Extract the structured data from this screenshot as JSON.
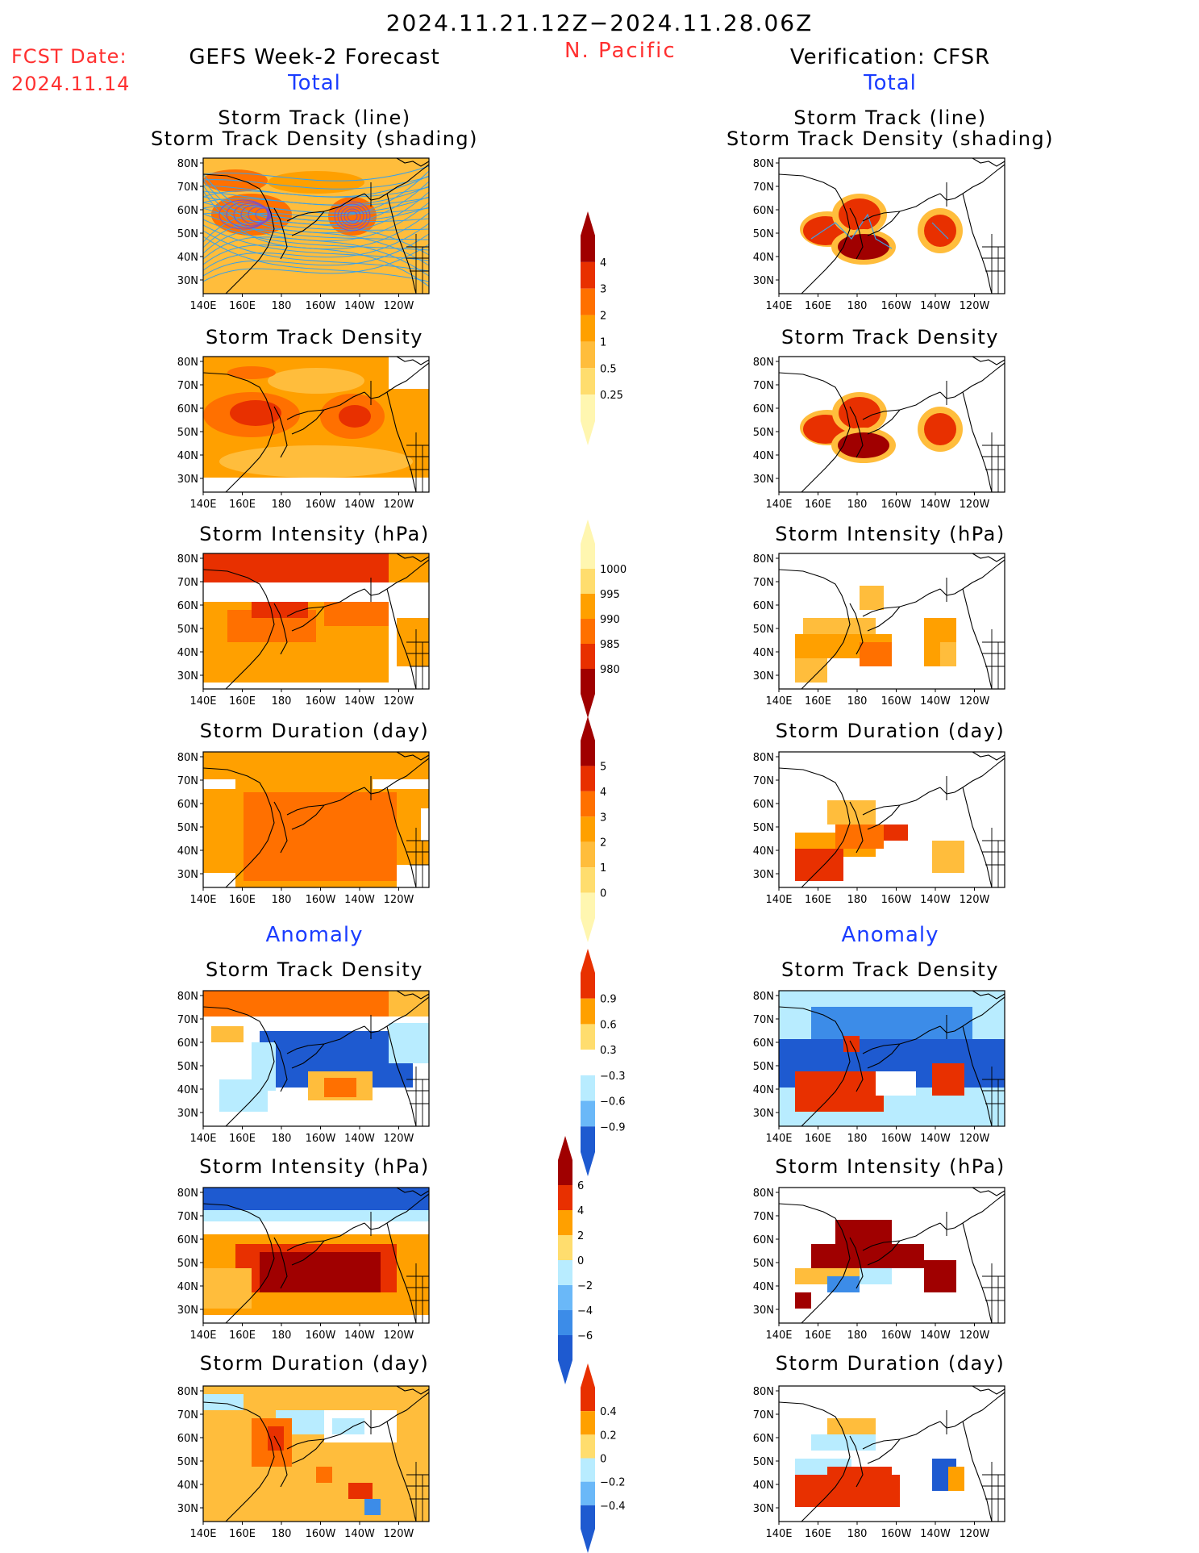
{
  "header": {
    "date_range": "2024.11.21.12Z−2024.11.28.06Z",
    "fcst_label": "FCST Date:",
    "fcst_date": "2024.11.14",
    "region": "N. Pacific",
    "left_title": "GEFS Week-2 Forecast",
    "right_title": "Verification: CFSR",
    "total_label": "Total",
    "anomaly_label": "Anomaly"
  },
  "panel_titles": {
    "track_line": "Storm Track (line)",
    "track_density_shading": "Storm Track Density (shading)",
    "track_density": "Storm Track Density",
    "intensity": "Storm Intensity (hPa)",
    "duration": "Storm Duration (day)"
  },
  "axes": {
    "lat_labels": [
      "80N",
      "70N",
      "60N",
      "50N",
      "40N",
      "30N"
    ],
    "lon_labels": [
      "140E",
      "160E",
      "180",
      "160W",
      "140W",
      "120W"
    ]
  },
  "colorbars": {
    "density_total": [
      "0.25",
      "0.5",
      "1",
      "2",
      "3",
      "4"
    ],
    "intensity_total": [
      "1000",
      "995",
      "990",
      "985",
      "980"
    ],
    "duration_total": [
      "0",
      "1",
      "2",
      "3",
      "4",
      "5"
    ],
    "density_anom": [
      "0.9",
      "0.6",
      "0.3",
      "−0.3",
      "−0.6",
      "−0.9"
    ],
    "intensity_anom": [
      "6",
      "4",
      "2",
      "0",
      "−2",
      "−4",
      "−6"
    ],
    "duration_anom": [
      "0.4",
      "0.2",
      "0",
      "−0.2",
      "−0.4"
    ]
  },
  "colors": {
    "light_yellow": "#fff6b0",
    "yellow": "#ffdd6e",
    "light_orange": "#ffbd3c",
    "orange": "#ffa000",
    "dark_orange": "#ff7000",
    "red": "#e83000",
    "dark_red": "#a00000",
    "light_blue": "#b8ecff",
    "mid_blue": "#6ab8f8",
    "blue": "#3c8ce8",
    "dark_blue": "#1e5ad0",
    "title_red": "#ff3030",
    "title_blue": "#1a3cff"
  }
}
